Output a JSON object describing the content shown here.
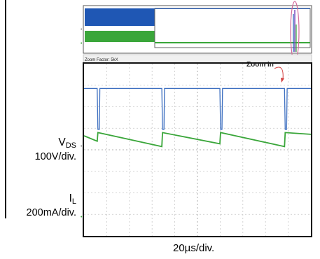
{
  "chart_data": {
    "type": "line",
    "title": "",
    "xlabel": "20µs/div.",
    "ylabel": "",
    "time_per_div_us": 20,
    "grid": true,
    "divisions": {
      "x": 10,
      "y": 8
    },
    "overview_text": "Zoom Factor: 5kX",
    "annotation": "Zoom In",
    "series": [
      {
        "name": "VDS",
        "scale": "100V/div.",
        "color": "#3d6fc0",
        "x_us": [
          0,
          10,
          10.5,
          11.6,
          12,
          59,
          59.5,
          60.6,
          61,
          103,
          103.5,
          104.6,
          105,
          152,
          152.5,
          153.6,
          154,
          172
        ],
        "y_div": [
          2.85,
          2.85,
          0.95,
          0.95,
          2.85,
          2.85,
          0.95,
          0.95,
          2.85,
          2.85,
          0.95,
          0.95,
          2.85,
          2.85,
          0.95,
          0.95,
          2.85,
          2.85
        ]
      },
      {
        "name": "IL",
        "scale": "200mA/div.",
        "color": "#3aa63a",
        "x_us": [
          0,
          10,
          10.5,
          59,
          59.5,
          103,
          103.5,
          152,
          152.5,
          172
        ],
        "y_div": [
          0.65,
          0.4,
          0.8,
          0.15,
          0.8,
          0.28,
          0.8,
          0.15,
          0.8,
          0.72
        ]
      }
    ]
  },
  "labels": {
    "vds_main": "V",
    "vds_sub": "DS",
    "vds_scale": "100V/div.",
    "il_main": "I",
    "il_sub": "L",
    "il_scale": "200mA/div.",
    "timebase": "20µs/div."
  }
}
